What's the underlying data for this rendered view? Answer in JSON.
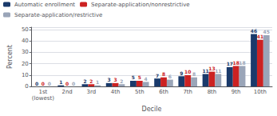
{
  "chart_data": {
    "type": "bar",
    "categories": [
      "1st\n(lowest)",
      "2nd",
      "3rd",
      "4th",
      "5th",
      "6th",
      "7th",
      "8th",
      "9th",
      "10th"
    ],
    "series": [
      {
        "name": "Automatic enrollment",
        "color": "#1a3a6b",
        "values": [
          0,
          1,
          2,
          3,
          5,
          7,
          9,
          11,
          17,
          46
        ]
      },
      {
        "name": "Separate-application/nonrestrictive",
        "color": "#cc2222",
        "values": [
          0,
          0,
          2,
          3,
          5,
          8,
          10,
          13,
          18,
          41
        ]
      },
      {
        "name": "Separate-application/restrictive",
        "color": "#9aa5b8",
        "values": [
          0,
          0,
          1,
          2,
          4,
          6,
          8,
          11,
          18,
          45
        ]
      }
    ],
    "xlabel": "Decile",
    "ylabel": "Percent",
    "ylim": [
      0,
      52
    ],
    "yticks": [
      0,
      10,
      20,
      30,
      40,
      50
    ],
    "grid": true,
    "legend": "top",
    "data_labels": true
  }
}
